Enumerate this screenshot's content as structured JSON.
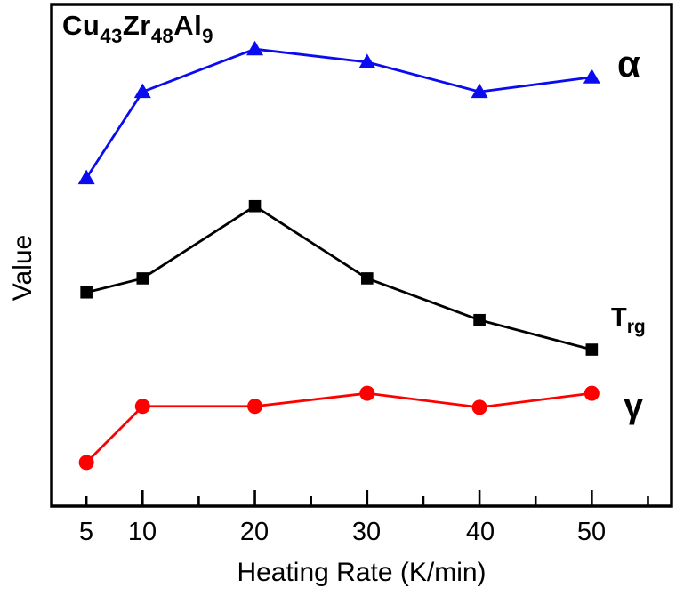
{
  "figure": {
    "title_parts": {
      "b1": "Cu",
      "s1": "43",
      "b2": "Zr",
      "s2": "48",
      "b3": "Al",
      "s3": "9"
    }
  },
  "chart_data": {
    "type": "line",
    "title": "Cu43Zr48Al9",
    "xlabel": "Heating Rate (K/min)",
    "ylabel": "Value",
    "grid": false,
    "legend_position": "inline-right",
    "x": [
      5,
      10,
      20,
      30,
      40,
      50
    ],
    "x_tick_labels": [
      "5",
      "10",
      "20",
      "30",
      "40",
      "50"
    ],
    "x_major_ticks": [
      10,
      20,
      30,
      40,
      50
    ],
    "x_minor_ticks": [
      5,
      15,
      25,
      35,
      45,
      55
    ],
    "xlim": [
      1.9,
      57.1
    ],
    "ylim": [
      0,
      1
    ],
    "y_units": "arbitrary (y axis unlabeled, values normalized 0-1 of plot height)",
    "series": [
      {
        "name": "alpha",
        "label": "α",
        "color": "#0b0bf0",
        "marker": "triangle",
        "values": [
          0.654,
          0.826,
          0.911,
          0.885,
          0.826,
          0.855
        ]
      },
      {
        "name": "Trg",
        "label": "T",
        "label_sub": "rg",
        "color": "#000000",
        "marker": "square",
        "values": [
          0.426,
          0.454,
          0.598,
          0.454,
          0.371,
          0.312
        ]
      },
      {
        "name": "gamma",
        "label": "γ",
        "color": "#ff0000",
        "marker": "circle",
        "values": [
          0.087,
          0.199,
          0.199,
          0.225,
          0.197,
          0.225
        ]
      }
    ]
  }
}
